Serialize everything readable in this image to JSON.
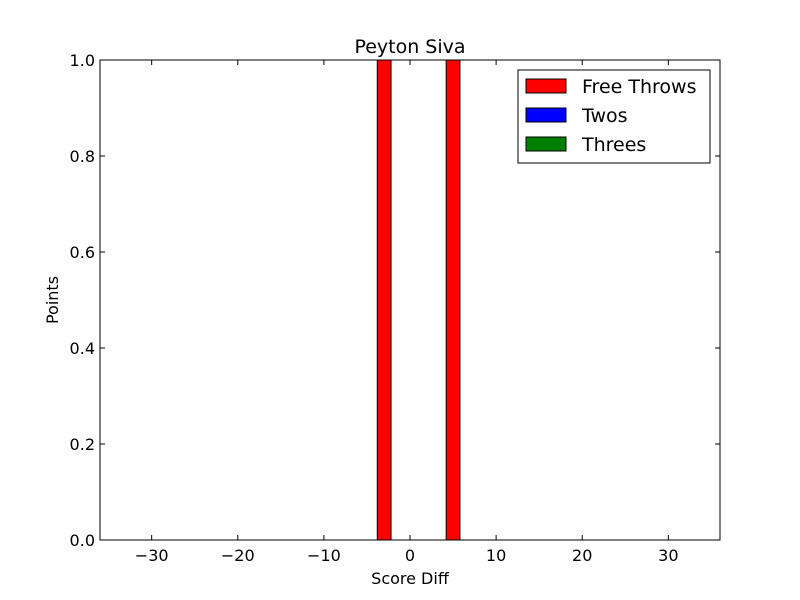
{
  "chart_data": {
    "type": "bar",
    "title": "Peyton Siva",
    "xlabel": "Score Diff",
    "ylabel": "Points",
    "xlim": [
      -36,
      36
    ],
    "ylim": [
      0,
      1
    ],
    "xticks": [
      -30,
      -20,
      -10,
      0,
      10,
      20,
      30
    ],
    "xtick_labels": [
      "−30",
      "−20",
      "−10",
      "0",
      "10",
      "20",
      "30"
    ],
    "yticks": [
      0,
      0.2,
      0.4,
      0.6,
      0.8,
      1.0
    ],
    "ytick_labels": [
      "0.0",
      "0.2",
      "0.4",
      "0.6",
      "0.8",
      "1.0"
    ],
    "bar_width": 1.6,
    "series": [
      {
        "name": "Free Throws",
        "color": "#ff0000",
        "x": [
          -3,
          5
        ],
        "values": [
          1,
          1
        ]
      },
      {
        "name": "Twos",
        "color": "#0000ff",
        "x": [],
        "values": []
      },
      {
        "name": "Threes",
        "color": "#008000",
        "x": [],
        "values": []
      }
    ],
    "legend": {
      "position": "top-right"
    },
    "grid": false
  }
}
